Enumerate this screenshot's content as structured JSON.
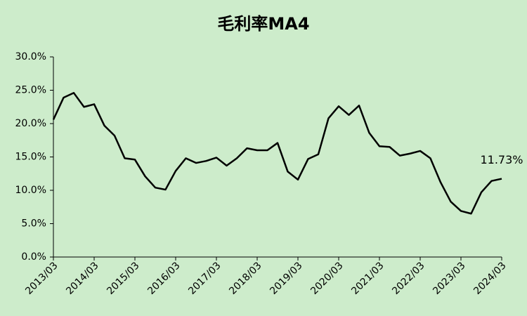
{
  "chart_data": {
    "type": "line",
    "title": "毛利率MA4",
    "categories": [
      "2013/03",
      null,
      null,
      null,
      "2014/03",
      null,
      null,
      null,
      "2015/03",
      null,
      null,
      null,
      "2016/03",
      null,
      null,
      null,
      "2017/03",
      null,
      null,
      null,
      "2018/03",
      null,
      null,
      null,
      "2019/03",
      null,
      null,
      null,
      "2020/03",
      null,
      null,
      null,
      "2021/03",
      null,
      null,
      null,
      "2022/03",
      null,
      null,
      null,
      "2023/03",
      null,
      null,
      null,
      "2024/03"
    ],
    "values": [
      20.6,
      23.9,
      24.6,
      22.5,
      22.9,
      19.7,
      18.2,
      14.8,
      14.6,
      12.1,
      10.4,
      10.1,
      12.9,
      14.8,
      14.1,
      14.4,
      14.9,
      13.7,
      14.8,
      16.3,
      16.0,
      16.0,
      17.1,
      12.8,
      11.6,
      14.7,
      15.4,
      20.8,
      22.6,
      21.3,
      22.7,
      18.6,
      16.6,
      16.5,
      15.2,
      15.5,
      15.9,
      14.8,
      11.2,
      8.3,
      6.9,
      6.5,
      9.7,
      11.4,
      11.73
    ],
    "value_labels": [
      null,
      null,
      null,
      null,
      null,
      null,
      null,
      null,
      null,
      null,
      null,
      null,
      null,
      null,
      null,
      null,
      null,
      null,
      null,
      null,
      null,
      null,
      null,
      null,
      null,
      null,
      null,
      null,
      null,
      null,
      null,
      null,
      null,
      null,
      null,
      null,
      null,
      null,
      null,
      null,
      null,
      null,
      null,
      null,
      "11.73%"
    ],
    "color": "#000000",
    "ylim": [
      0,
      30
    ],
    "yticks": [
      {
        "value": 0,
        "label": "0.0%"
      },
      {
        "value": 5,
        "label": "5.0%"
      },
      {
        "value": 10,
        "label": "10.0%"
      },
      {
        "value": 15,
        "label": "15.0%"
      },
      {
        "value": 20,
        "label": "20.0%"
      },
      {
        "value": 25,
        "label": "25.0%"
      },
      {
        "value": 30,
        "label": "30.0%"
      }
    ],
    "grid": false
  }
}
